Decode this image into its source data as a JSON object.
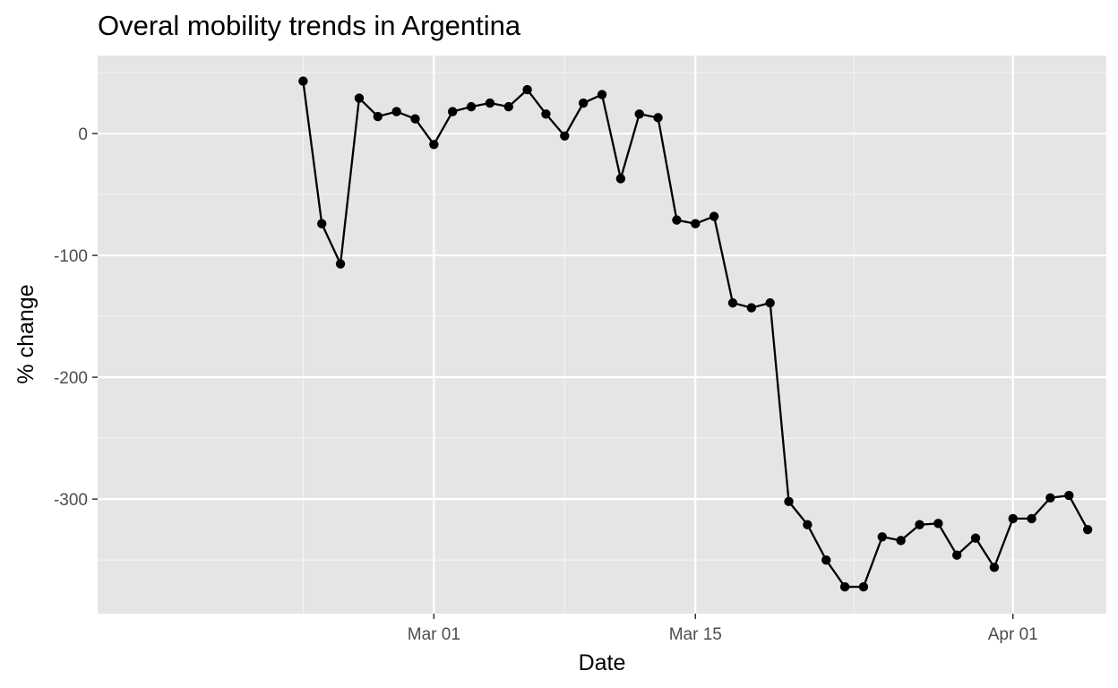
{
  "chart_data": {
    "type": "line",
    "title": "Overal mobility trends in Argentina",
    "xlabel": "Date",
    "ylabel": "% change",
    "x_ticks": [
      {
        "date": "2020-03-01",
        "label": "Mar 01"
      },
      {
        "date": "2020-03-15",
        "label": "Mar 15"
      },
      {
        "date": "2020-04-01",
        "label": "Apr 01"
      }
    ],
    "y_ticks": [
      0,
      -100,
      -200,
      -300
    ],
    "xlim": [
      "2020-02-12",
      "2020-04-06"
    ],
    "ylim": [
      -394,
      64
    ],
    "grid": true,
    "colors": {
      "panel_background": "#e5e5e5",
      "grid_major": "#ffffff",
      "grid_minor": "#f2f2f2",
      "line": "#000000",
      "point": "#000000",
      "tick": "#333333"
    },
    "series": [
      {
        "x": [
          "2020-02-23",
          "2020-02-24",
          "2020-02-25",
          "2020-02-26",
          "2020-02-27",
          "2020-02-28",
          "2020-02-29",
          "2020-03-01",
          "2020-03-02",
          "2020-03-03",
          "2020-03-04",
          "2020-03-05",
          "2020-03-06",
          "2020-03-07",
          "2020-03-08",
          "2020-03-09",
          "2020-03-10",
          "2020-03-11",
          "2020-03-12",
          "2020-03-13",
          "2020-03-14",
          "2020-03-15",
          "2020-03-16",
          "2020-03-17",
          "2020-03-18",
          "2020-03-19",
          "2020-03-20",
          "2020-03-21",
          "2020-03-22",
          "2020-03-23",
          "2020-03-24",
          "2020-03-25",
          "2020-03-26",
          "2020-03-27",
          "2020-03-28",
          "2020-03-29",
          "2020-03-30",
          "2020-03-31",
          "2020-04-01",
          "2020-04-02",
          "2020-04-03",
          "2020-04-04",
          "2020-04-05"
        ],
        "values": [
          43,
          -74,
          -107,
          29,
          14,
          18,
          12,
          -9,
          18,
          22,
          25,
          22,
          36,
          16,
          -2,
          25,
          32,
          -37,
          16,
          13,
          -71,
          -74,
          -68,
          -139,
          -143,
          -139,
          -302,
          -321,
          -350,
          -372,
          -372,
          -331,
          -334,
          -321,
          -320,
          -346,
          -332,
          -356,
          -316,
          -316,
          -299,
          -297,
          -325
        ]
      }
    ]
  }
}
